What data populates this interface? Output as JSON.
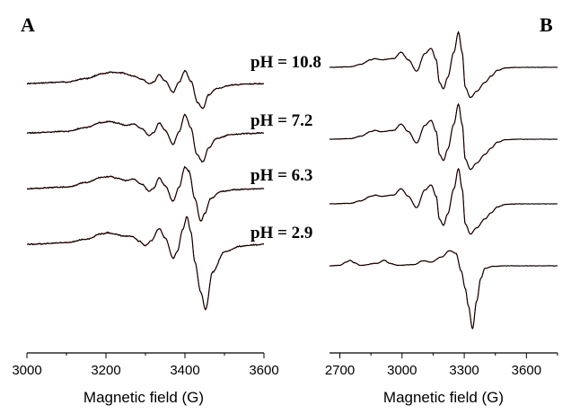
{
  "chart_data": [
    {
      "type": "line",
      "panel_label": "A",
      "xlabel": "Magnetic field (G)",
      "ylabel": "",
      "xlim": [
        3000,
        3600
      ],
      "xticks": [
        3000,
        3200,
        3400,
        3600
      ],
      "grid": false,
      "colors": {
        "experimental": "#000000",
        "simulation": "#e8231e"
      },
      "series": [
        {
          "label": "pH = 10.8",
          "x": [
            3000,
            3100,
            3150,
            3190,
            3215,
            3240,
            3270,
            3290,
            3310,
            3320,
            3335,
            3350,
            3370,
            3385,
            3400,
            3415,
            3432,
            3445,
            3460,
            3480,
            3520,
            3560,
            3600
          ],
          "y": [
            0,
            0.06,
            0.2,
            0.38,
            0.45,
            0.42,
            0.3,
            0.18,
            0.0,
            0.05,
            0.35,
            0.1,
            -0.35,
            0.05,
            0.5,
            0.1,
            -0.75,
            -1.0,
            -0.45,
            -0.2,
            -0.06,
            -0.02,
            0
          ]
        },
        {
          "label": "pH = 7.2",
          "x": [
            3000,
            3100,
            3150,
            3190,
            3210,
            3230,
            3250,
            3270,
            3290,
            3310,
            3320,
            3335,
            3350,
            3370,
            3385,
            3400,
            3415,
            3430,
            3445,
            3460,
            3480,
            3520,
            3560,
            3600
          ],
          "y": [
            0,
            0.06,
            0.22,
            0.42,
            0.46,
            0.38,
            0.3,
            0.35,
            0.18,
            -0.1,
            0.0,
            0.4,
            0.1,
            -0.45,
            0.05,
            0.72,
            0.2,
            -0.85,
            -1.15,
            -0.6,
            -0.22,
            -0.06,
            -0.02,
            0
          ]
        },
        {
          "label": "pH = 6.3",
          "x": [
            3000,
            3100,
            3150,
            3190,
            3210,
            3230,
            3250,
            3270,
            3290,
            3310,
            3320,
            3335,
            3350,
            3370,
            3385,
            3400,
            3410,
            3425,
            3440,
            3450,
            3465,
            3490,
            3530,
            3570,
            3600
          ],
          "y": [
            0,
            0.06,
            0.24,
            0.45,
            0.48,
            0.4,
            0.32,
            0.38,
            0.18,
            -0.1,
            0.0,
            0.42,
            0.1,
            -0.5,
            0.05,
            0.85,
            0.7,
            -0.4,
            -1.3,
            -1.0,
            -0.4,
            -0.12,
            -0.04,
            -0.01,
            0
          ]
        },
        {
          "label": "pH = 2.9",
          "x": [
            3000,
            3100,
            3150,
            3190,
            3205,
            3225,
            3245,
            3265,
            3285,
            3300,
            3315,
            3335,
            3350,
            3370,
            3380,
            3395,
            3405,
            3415,
            3425,
            3440,
            3452,
            3470,
            3500,
            3540,
            3580,
            3600
          ],
          "y": [
            0,
            0.06,
            0.2,
            0.42,
            0.46,
            0.4,
            0.32,
            0.32,
            0.12,
            -0.05,
            0.15,
            0.62,
            0.25,
            -0.55,
            -0.3,
            0.6,
            1.1,
            0.5,
            -0.7,
            -1.9,
            -2.6,
            -1.1,
            -0.3,
            -0.08,
            -0.02,
            0
          ]
        }
      ]
    },
    {
      "type": "line",
      "panel_label": "B",
      "xlabel": "Magnetic field (G)",
      "ylabel": "",
      "xlim": [
        2650,
        3750
      ],
      "xticks": [
        2700,
        3000,
        3300,
        3600
      ],
      "grid": false,
      "colors": {
        "experimental": "#000000",
        "simulation": "#e8231e"
      },
      "series": [
        {
          "label": "pH = 10.8",
          "x": [
            2650,
            2750,
            2800,
            2850,
            2870,
            2900,
            2960,
            2995,
            3030,
            3070,
            3110,
            3140,
            3165,
            3180,
            3200,
            3220,
            3250,
            3272,
            3290,
            3305,
            3330,
            3360,
            3400,
            3430,
            3460,
            3500,
            3560,
            3650,
            3750
          ],
          "y": [
            0,
            0.02,
            0.12,
            0.3,
            0.35,
            0.3,
            0.35,
            0.6,
            0.3,
            -0.15,
            0.55,
            0.75,
            0.3,
            -0.6,
            -0.85,
            -0.4,
            0.6,
            1.4,
            0.6,
            -0.8,
            -1.2,
            -0.95,
            -0.6,
            -0.35,
            -0.12,
            -0.02,
            0,
            0,
            0
          ]
        },
        {
          "label": "pH = 7.2",
          "x": [
            2650,
            2750,
            2800,
            2850,
            2870,
            2900,
            2960,
            2995,
            3030,
            3070,
            3110,
            3140,
            3165,
            3180,
            3200,
            3220,
            3250,
            3272,
            3290,
            3305,
            3330,
            3360,
            3400,
            3430,
            3460,
            3500,
            3560,
            3650,
            3750
          ],
          "y": [
            0,
            0.02,
            0.12,
            0.3,
            0.35,
            0.3,
            0.35,
            0.6,
            0.3,
            -0.15,
            0.55,
            0.75,
            0.3,
            -0.6,
            -0.85,
            -0.4,
            0.6,
            1.4,
            0.6,
            -0.8,
            -1.2,
            -0.95,
            -0.6,
            -0.35,
            -0.12,
            -0.02,
            0,
            0,
            0
          ]
        },
        {
          "label": "pH = 6.3",
          "x": [
            2650,
            2750,
            2800,
            2850,
            2870,
            2900,
            2960,
            2995,
            3030,
            3070,
            3110,
            3140,
            3165,
            3180,
            3200,
            3220,
            3250,
            3272,
            3290,
            3305,
            3330,
            3360,
            3400,
            3430,
            3460,
            3500,
            3560,
            3650,
            3750
          ],
          "y": [
            0,
            0.02,
            0.12,
            0.3,
            0.35,
            0.3,
            0.35,
            0.6,
            0.3,
            -0.15,
            0.55,
            0.75,
            0.3,
            -0.6,
            -0.85,
            -0.4,
            0.6,
            1.4,
            0.6,
            -0.8,
            -1.2,
            -0.95,
            -0.6,
            -0.35,
            -0.12,
            -0.02,
            0,
            0,
            0
          ]
        },
        {
          "label": "pH = 2.9",
          "x": [
            2650,
            2700,
            2730,
            2750,
            2770,
            2800,
            2880,
            2915,
            2940,
            2980,
            3060,
            3100,
            3140,
            3190,
            3230,
            3260,
            3285,
            3305,
            3320,
            3340,
            3360,
            3380,
            3400,
            3440,
            3500,
            3600,
            3750
          ],
          "y": [
            0,
            0.02,
            0.15,
            0.22,
            0.12,
            0.02,
            0.1,
            0.22,
            0.1,
            0.02,
            0.05,
            0.2,
            0.15,
            0.35,
            0.6,
            0.5,
            -0.2,
            -0.9,
            -1.6,
            -2.5,
            -1.4,
            -0.5,
            -0.1,
            -0.02,
            0,
            0,
            0
          ]
        }
      ]
    }
  ]
}
